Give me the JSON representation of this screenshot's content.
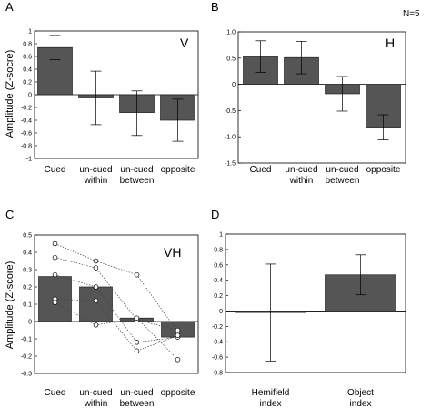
{
  "figure": {
    "note": "N=5"
  },
  "chart_data": [
    {
      "panel": "A",
      "tag": "V",
      "type": "bar",
      "ylabel": "Amplitude (Z-socre)",
      "categories": [
        [
          "Cued"
        ],
        [
          "un-cued",
          "within"
        ],
        [
          "un-cued",
          "between"
        ],
        [
          "opposite"
        ]
      ],
      "values": [
        0.74,
        -0.05,
        -0.28,
        -0.4
      ],
      "err_hi": [
        0.93,
        0.37,
        0.06,
        -0.07
      ],
      "err_lo": [
        0.55,
        -0.47,
        -0.64,
        -0.73
      ],
      "ylim": [
        -1.0,
        1.0
      ],
      "yticks": [
        "1",
        "0.8",
        "0.6",
        "0.4",
        "0.2",
        "0",
        "-0.2",
        "-0.4",
        "-0.6",
        "-0.8",
        "-1"
      ],
      "ytick_values": [
        1,
        0.8,
        0.6,
        0.4,
        0.2,
        0,
        -0.2,
        -0.4,
        -0.6,
        -0.8,
        -1
      ]
    },
    {
      "panel": "B",
      "tag": "H",
      "type": "bar",
      "ylabel": "",
      "categories": [
        [
          "Cued"
        ],
        [
          "un-cued",
          "within"
        ],
        [
          "un-cued",
          "between"
        ],
        [
          "opposite"
        ]
      ],
      "values": [
        0.53,
        0.51,
        -0.18,
        -0.82
      ],
      "err_hi": [
        0.83,
        0.82,
        0.15,
        -0.58
      ],
      "err_lo": [
        0.23,
        0.2,
        -0.51,
        -1.06
      ],
      "ylim": [
        -1.5,
        1.0
      ],
      "yticks": [
        "1.0",
        "0.5",
        "0",
        "-0.5",
        "-1.0",
        "-1.5"
      ],
      "ytick_values": [
        1,
        0.5,
        0,
        -0.5,
        -1.0,
        -1.5
      ]
    },
    {
      "panel": "C",
      "tag": "VH",
      "type": "bar",
      "ylabel": "Amplitude (Z-score)",
      "categories": [
        [
          "Cued"
        ],
        [
          "un-cued",
          "within"
        ],
        [
          "un-cued",
          "between"
        ],
        [
          "opposite"
        ]
      ],
      "values": [
        0.26,
        0.2,
        0.02,
        -0.09
      ],
      "subjects": [
        [
          0.45,
          0.35,
          0.27,
          -0.06
        ],
        [
          0.37,
          0.31,
          0.01,
          -0.05
        ],
        [
          0.27,
          0.2,
          -0.12,
          -0.09
        ],
        [
          0.13,
          0.12,
          -0.17,
          -0.08
        ],
        [
          0.11,
          -0.02,
          0.02,
          -0.22
        ]
      ],
      "ylim": [
        -0.3,
        0.5
      ],
      "yticks": [
        "0.5",
        "0.4",
        "0.3",
        "0.2",
        "0.1",
        "0",
        "-0.1",
        "-0.2",
        "-0.3"
      ],
      "ytick_values": [
        0.5,
        0.4,
        0.3,
        0.2,
        0.1,
        0,
        -0.1,
        -0.2,
        -0.3
      ]
    },
    {
      "panel": "D",
      "tag": "",
      "type": "bar",
      "ylabel": "",
      "categories": [
        [
          "Hemifield",
          "index"
        ],
        [
          "Object",
          "index"
        ]
      ],
      "values": [
        -0.02,
        0.47
      ],
      "err_hi": [
        0.61,
        0.73
      ],
      "err_lo": [
        -0.65,
        0.21
      ],
      "ylim": [
        -0.8,
        1.0
      ],
      "yticks": [
        "1",
        "0.8",
        "0.6",
        "0.4",
        "0.2",
        "0",
        "-0.2",
        "-0.4",
        "-0.6",
        "-0.8"
      ],
      "ytick_values": [
        1,
        0.8,
        0.6,
        0.4,
        0.2,
        0,
        -0.2,
        -0.4,
        -0.6,
        -0.8
      ]
    }
  ]
}
